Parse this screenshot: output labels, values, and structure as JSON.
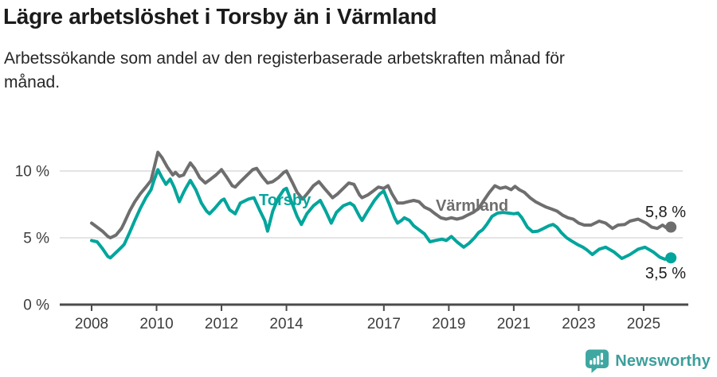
{
  "title": "Lägre arbetslöshet i Torsby än i Värmland",
  "subtitle_line1": "Arbetssökande som andel av den registerbaserade arbetskraften månad för",
  "subtitle_line2": "månad.",
  "branding": {
    "logo_text": "Newsworthy",
    "logo_icon": "newsworthy-chart-bubble-icon"
  },
  "colors": {
    "torsby_line": "#00a59c",
    "varmland_line": "#6e6e6e",
    "gridline": "#dcdcdc",
    "axis": "#4b4b4b",
    "tick_text": "#3d3d3d",
    "annotation_text": "#1b1b1b",
    "logo_teal": "#3fa7a2",
    "background": "#ffffff"
  },
  "chart_data": {
    "type": "line",
    "title": "Lägre arbetslöshet i Torsby än i Värmland",
    "subtitle": "Arbetssökande som andel av den registerbaserade arbetskraften månad för månad.",
    "unit": "%",
    "grid": "horizontal-only",
    "x_axis": {
      "ticks": [
        {
          "year": 2008,
          "label": "2008"
        },
        {
          "year": 2010,
          "label": "2010"
        },
        {
          "year": 2012,
          "label": "2012"
        },
        {
          "year": 2014,
          "label": "2014"
        },
        {
          "year": 2017,
          "label": "2017"
        },
        {
          "year": 2019,
          "label": "2019"
        },
        {
          "year": 2021,
          "label": "2021"
        },
        {
          "year": 2023,
          "label": "2023"
        },
        {
          "year": 2025,
          "label": "2025"
        }
      ],
      "range": [
        2008.0,
        2025.84
      ]
    },
    "y_axis": {
      "ticks": [
        {
          "value": 0,
          "label": "0 %"
        },
        {
          "value": 5,
          "label": "5 %"
        },
        {
          "value": 10,
          "label": "10 %"
        }
      ],
      "range": [
        0,
        11.8
      ]
    },
    "series": [
      {
        "name": "Torsby",
        "color": "#00a59c",
        "end_value": 3.5,
        "end_label": "3,5 %",
        "points": [
          [
            2008.0,
            4.8
          ],
          [
            2008.17,
            4.7
          ],
          [
            2008.33,
            4.2
          ],
          [
            2008.5,
            3.6
          ],
          [
            2008.58,
            3.5
          ],
          [
            2008.75,
            3.9
          ],
          [
            2008.92,
            4.3
          ],
          [
            2009.0,
            4.5
          ],
          [
            2009.17,
            5.4
          ],
          [
            2009.33,
            6.3
          ],
          [
            2009.5,
            7.2
          ],
          [
            2009.67,
            8.0
          ],
          [
            2009.83,
            8.6
          ],
          [
            2009.92,
            9.3
          ],
          [
            2010.04,
            10.1
          ],
          [
            2010.17,
            9.5
          ],
          [
            2010.29,
            9.0
          ],
          [
            2010.42,
            9.4
          ],
          [
            2010.54,
            8.8
          ],
          [
            2010.7,
            7.7
          ],
          [
            2010.83,
            8.4
          ],
          [
            2010.92,
            8.8
          ],
          [
            2011.04,
            9.3
          ],
          [
            2011.21,
            8.6
          ],
          [
            2011.38,
            7.6
          ],
          [
            2011.54,
            7.0
          ],
          [
            2011.63,
            6.8
          ],
          [
            2011.79,
            7.2
          ],
          [
            2012.0,
            7.8
          ],
          [
            2012.08,
            7.9
          ],
          [
            2012.25,
            7.1
          ],
          [
            2012.42,
            6.8
          ],
          [
            2012.58,
            7.6
          ],
          [
            2012.83,
            7.9
          ],
          [
            2013.0,
            8.0
          ],
          [
            2013.17,
            7.1
          ],
          [
            2013.33,
            6.3
          ],
          [
            2013.42,
            5.5
          ],
          [
            2013.58,
            7.0
          ],
          [
            2013.75,
            8.0
          ],
          [
            2013.92,
            8.6
          ],
          [
            2014.0,
            8.7
          ],
          [
            2014.17,
            7.6
          ],
          [
            2014.33,
            6.6
          ],
          [
            2014.46,
            6.0
          ],
          [
            2014.63,
            6.8
          ],
          [
            2014.83,
            7.4
          ],
          [
            2015.04,
            7.8
          ],
          [
            2015.21,
            7.0
          ],
          [
            2015.38,
            6.1
          ],
          [
            2015.54,
            6.9
          ],
          [
            2015.75,
            7.4
          ],
          [
            2015.96,
            7.6
          ],
          [
            2016.08,
            7.4
          ],
          [
            2016.25,
            6.6
          ],
          [
            2016.33,
            6.3
          ],
          [
            2016.5,
            7.0
          ],
          [
            2016.71,
            7.8
          ],
          [
            2016.88,
            8.3
          ],
          [
            2017.0,
            8.5
          ],
          [
            2017.17,
            7.5
          ],
          [
            2017.33,
            6.5
          ],
          [
            2017.42,
            6.1
          ],
          [
            2017.54,
            6.3
          ],
          [
            2017.63,
            6.5
          ],
          [
            2017.79,
            6.3
          ],
          [
            2017.92,
            5.9
          ],
          [
            2018.08,
            5.6
          ],
          [
            2018.25,
            5.3
          ],
          [
            2018.42,
            4.7
          ],
          [
            2018.58,
            4.8
          ],
          [
            2018.79,
            4.9
          ],
          [
            2018.92,
            4.8
          ],
          [
            2019.08,
            5.1
          ],
          [
            2019.25,
            4.7
          ],
          [
            2019.46,
            4.3
          ],
          [
            2019.63,
            4.6
          ],
          [
            2019.79,
            5.0
          ],
          [
            2019.92,
            5.4
          ],
          [
            2020.04,
            5.6
          ],
          [
            2020.17,
            6.0
          ],
          [
            2020.33,
            6.6
          ],
          [
            2020.5,
            6.85
          ],
          [
            2020.67,
            6.9
          ],
          [
            2020.83,
            6.85
          ],
          [
            2021.0,
            6.8
          ],
          [
            2021.13,
            6.85
          ],
          [
            2021.25,
            6.5
          ],
          [
            2021.42,
            5.8
          ],
          [
            2021.58,
            5.45
          ],
          [
            2021.75,
            5.5
          ],
          [
            2021.92,
            5.7
          ],
          [
            2022.08,
            5.9
          ],
          [
            2022.21,
            6.0
          ],
          [
            2022.33,
            5.8
          ],
          [
            2022.46,
            5.4
          ],
          [
            2022.63,
            5.0
          ],
          [
            2022.79,
            4.75
          ],
          [
            2022.96,
            4.5
          ],
          [
            2023.13,
            4.3
          ],
          [
            2023.25,
            4.1
          ],
          [
            2023.42,
            3.75
          ],
          [
            2023.63,
            4.15
          ],
          [
            2023.83,
            4.3
          ],
          [
            2024.08,
            3.95
          ],
          [
            2024.33,
            3.45
          ],
          [
            2024.58,
            3.75
          ],
          [
            2024.83,
            4.15
          ],
          [
            2025.04,
            4.3
          ],
          [
            2025.29,
            3.95
          ],
          [
            2025.5,
            3.55
          ],
          [
            2025.65,
            3.4
          ],
          [
            2025.84,
            3.5
          ]
        ]
      },
      {
        "name": "Värmland",
        "color": "#6e6e6e",
        "end_value": 5.8,
        "end_label": "5,8 %",
        "points": [
          [
            2008.0,
            6.1
          ],
          [
            2008.17,
            5.8
          ],
          [
            2008.33,
            5.5
          ],
          [
            2008.5,
            5.1
          ],
          [
            2008.58,
            5.0
          ],
          [
            2008.75,
            5.2
          ],
          [
            2008.92,
            5.7
          ],
          [
            2009.0,
            6.1
          ],
          [
            2009.17,
            7.0
          ],
          [
            2009.33,
            7.7
          ],
          [
            2009.5,
            8.3
          ],
          [
            2009.67,
            8.8
          ],
          [
            2009.83,
            9.3
          ],
          [
            2009.92,
            10.2
          ],
          [
            2010.04,
            11.4
          ],
          [
            2010.17,
            11.0
          ],
          [
            2010.33,
            10.3
          ],
          [
            2010.5,
            9.7
          ],
          [
            2010.58,
            9.9
          ],
          [
            2010.7,
            9.6
          ],
          [
            2010.83,
            9.7
          ],
          [
            2010.92,
            10.1
          ],
          [
            2011.04,
            10.6
          ],
          [
            2011.17,
            10.2
          ],
          [
            2011.33,
            9.5
          ],
          [
            2011.5,
            9.1
          ],
          [
            2011.67,
            9.4
          ],
          [
            2011.83,
            9.7
          ],
          [
            2012.0,
            10.1
          ],
          [
            2012.17,
            9.5
          ],
          [
            2012.33,
            8.9
          ],
          [
            2012.42,
            8.8
          ],
          [
            2012.58,
            9.2
          ],
          [
            2012.75,
            9.6
          ],
          [
            2012.96,
            10.1
          ],
          [
            2013.08,
            10.2
          ],
          [
            2013.25,
            9.6
          ],
          [
            2013.42,
            9.1
          ],
          [
            2013.58,
            9.2
          ],
          [
            2013.75,
            9.5
          ],
          [
            2013.92,
            9.9
          ],
          [
            2014.0,
            10.0
          ],
          [
            2014.17,
            9.2
          ],
          [
            2014.33,
            8.4
          ],
          [
            2014.5,
            7.9
          ],
          [
            2014.67,
            8.4
          ],
          [
            2014.83,
            8.9
          ],
          [
            2015.0,
            9.2
          ],
          [
            2015.17,
            8.7
          ],
          [
            2015.42,
            8.0
          ],
          [
            2015.58,
            8.3
          ],
          [
            2015.75,
            8.7
          ],
          [
            2015.92,
            9.1
          ],
          [
            2016.08,
            9.0
          ],
          [
            2016.25,
            8.2
          ],
          [
            2016.33,
            8.0
          ],
          [
            2016.5,
            8.2
          ],
          [
            2016.67,
            8.5
          ],
          [
            2016.83,
            8.8
          ],
          [
            2017.0,
            8.7
          ],
          [
            2017.13,
            8.9
          ],
          [
            2017.25,
            8.3
          ],
          [
            2017.42,
            7.6
          ],
          [
            2017.58,
            7.6
          ],
          [
            2017.75,
            7.7
          ],
          [
            2017.92,
            7.8
          ],
          [
            2018.08,
            7.7
          ],
          [
            2018.25,
            7.3
          ],
          [
            2018.42,
            7.1
          ],
          [
            2018.58,
            6.8
          ],
          [
            2018.75,
            6.5
          ],
          [
            2018.92,
            6.4
          ],
          [
            2019.08,
            6.5
          ],
          [
            2019.25,
            6.4
          ],
          [
            2019.42,
            6.5
          ],
          [
            2019.58,
            6.7
          ],
          [
            2019.75,
            6.9
          ],
          [
            2019.92,
            7.2
          ],
          [
            2020.08,
            7.8
          ],
          [
            2020.25,
            8.4
          ],
          [
            2020.42,
            8.9
          ],
          [
            2020.58,
            8.7
          ],
          [
            2020.75,
            8.8
          ],
          [
            2020.92,
            8.6
          ],
          [
            2021.04,
            8.85
          ],
          [
            2021.17,
            8.6
          ],
          [
            2021.33,
            8.4
          ],
          [
            2021.5,
            8.0
          ],
          [
            2021.67,
            7.7
          ],
          [
            2021.83,
            7.5
          ],
          [
            2022.0,
            7.3
          ],
          [
            2022.17,
            7.15
          ],
          [
            2022.33,
            7.0
          ],
          [
            2022.5,
            6.7
          ],
          [
            2022.67,
            6.5
          ],
          [
            2022.83,
            6.4
          ],
          [
            2023.0,
            6.1
          ],
          [
            2023.17,
            5.95
          ],
          [
            2023.38,
            5.95
          ],
          [
            2023.63,
            6.25
          ],
          [
            2023.83,
            6.1
          ],
          [
            2024.04,
            5.7
          ],
          [
            2024.21,
            5.95
          ],
          [
            2024.42,
            6.0
          ],
          [
            2024.58,
            6.25
          ],
          [
            2024.83,
            6.4
          ],
          [
            2025.08,
            6.1
          ],
          [
            2025.25,
            5.8
          ],
          [
            2025.42,
            5.7
          ],
          [
            2025.58,
            5.95
          ],
          [
            2025.7,
            5.75
          ],
          [
            2025.84,
            5.8
          ]
        ]
      }
    ],
    "legend_position": "inline-labels-on-lines"
  }
}
